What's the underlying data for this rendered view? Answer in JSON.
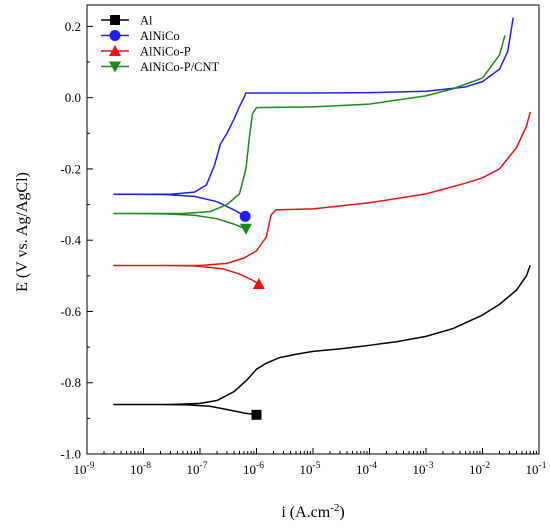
{
  "chart_data": {
    "type": "line",
    "title": "",
    "xlabel": "i (A.cm",
    "xlabel_superscript": "-2",
    "xlabel_close": ")",
    "ylabel": "E (V vs. Ag/AgCl)",
    "x_scale": "log",
    "xlim": [
      1e-09,
      0.1
    ],
    "ylim": [
      -1.0,
      0.26
    ],
    "x_ticks": [
      {
        "base": "10",
        "exp": "-9"
      },
      {
        "base": "10",
        "exp": "-8"
      },
      {
        "base": "10",
        "exp": "-7"
      },
      {
        "base": "10",
        "exp": "-6"
      },
      {
        "base": "10",
        "exp": "-5"
      },
      {
        "base": "10",
        "exp": "-4"
      },
      {
        "base": "10",
        "exp": "-3"
      },
      {
        "base": "10",
        "exp": "-2"
      },
      {
        "base": "10",
        "exp": "-1"
      }
    ],
    "y_ticks": [
      "-1.0",
      "-0.8",
      "-0.6",
      "-0.4",
      "-0.2",
      "0.0",
      "0.2"
    ],
    "grid": false,
    "legend_position": "top-left",
    "series": [
      {
        "name": "Al",
        "color": "#000000",
        "marker": "square",
        "cathodic": [
          [
            1e-06,
            -0.89
          ],
          [
            6e-07,
            -0.885
          ],
          [
            3e-07,
            -0.875
          ],
          [
            1.5e-07,
            -0.866
          ],
          [
            6e-08,
            -0.862
          ],
          [
            2e-08,
            -0.861
          ],
          [
            3e-09,
            -0.861
          ]
        ],
        "anodic": [
          [
            3e-09,
            -0.861
          ],
          [
            3e-08,
            -0.861
          ],
          [
            1e-07,
            -0.858
          ],
          [
            2e-07,
            -0.85
          ],
          [
            4e-07,
            -0.825
          ],
          [
            7e-07,
            -0.79
          ],
          [
            1e-06,
            -0.762
          ],
          [
            1.5e-06,
            -0.745
          ],
          [
            2.5e-06,
            -0.73
          ],
          [
            5e-06,
            -0.72
          ],
          [
            1e-05,
            -0.712
          ],
          [
            3e-05,
            -0.705
          ],
          [
            0.0001,
            -0.695
          ],
          [
            0.0003,
            -0.685
          ],
          [
            0.001,
            -0.67
          ],
          [
            0.003,
            -0.648
          ],
          [
            0.01,
            -0.61
          ],
          [
            0.02,
            -0.58
          ],
          [
            0.04,
            -0.54
          ],
          [
            0.06,
            -0.5
          ],
          [
            0.07,
            -0.47
          ]
        ]
      },
      {
        "name": "AlNiCo",
        "color": "#1f1fef",
        "marker": "circle",
        "cathodic": [
          [
            6.3e-07,
            -0.333
          ],
          [
            4e-07,
            -0.315
          ],
          [
            2e-07,
            -0.292
          ],
          [
            8e-08,
            -0.277
          ],
          [
            2.5e-08,
            -0.272
          ],
          [
            3e-09,
            -0.271
          ]
        ],
        "anodic": [
          [
            3e-09,
            -0.271
          ],
          [
            3e-08,
            -0.271
          ],
          [
            8e-08,
            -0.265
          ],
          [
            1.3e-07,
            -0.245
          ],
          [
            1.8e-07,
            -0.19
          ],
          [
            2.3e-07,
            -0.13
          ],
          [
            3e-07,
            -0.1
          ],
          [
            4e-07,
            -0.06
          ],
          [
            5e-07,
            -0.025
          ],
          [
            6e-07,
            0.0
          ],
          [
            6.5e-07,
            0.013
          ],
          [
            1e-06,
            0.013
          ],
          [
            1e-05,
            0.013
          ],
          [
            0.0001,
            0.014
          ],
          [
            0.001,
            0.018
          ],
          [
            0.005,
            0.03
          ],
          [
            0.01,
            0.045
          ],
          [
            0.02,
            0.08
          ],
          [
            0.028,
            0.13
          ],
          [
            0.033,
            0.2
          ],
          [
            0.035,
            0.225
          ]
        ]
      },
      {
        "name": "AlNiCo-P",
        "color": "#ee1111",
        "marker": "triangle-up",
        "cathodic": [
          [
            1.1e-06,
            -0.523
          ],
          [
            8e-07,
            -0.51
          ],
          [
            5e-07,
            -0.495
          ],
          [
            2.5e-07,
            -0.48
          ],
          [
            8e-08,
            -0.472
          ],
          [
            2e-08,
            -0.471
          ],
          [
            3e-09,
            -0.471
          ]
        ],
        "anodic": [
          [
            3e-09,
            -0.471
          ],
          [
            1e-07,
            -0.471
          ],
          [
            3e-07,
            -0.465
          ],
          [
            6e-07,
            -0.45
          ],
          [
            1e-06,
            -0.43
          ],
          [
            1.5e-06,
            -0.39
          ],
          [
            1.8e-06,
            -0.33
          ],
          [
            2.2e-06,
            -0.315
          ],
          [
            1e-05,
            -0.312
          ],
          [
            0.0001,
            -0.295
          ],
          [
            0.001,
            -0.27
          ],
          [
            0.005,
            -0.24
          ],
          [
            0.01,
            -0.225
          ],
          [
            0.02,
            -0.2
          ],
          [
            0.04,
            -0.14
          ],
          [
            0.06,
            -0.08
          ],
          [
            0.07,
            -0.04
          ]
        ]
      },
      {
        "name": "AlNiCo-P/CNT",
        "color": "#1a8a1a",
        "marker": "triangle-down",
        "cathodic": [
          [
            6.5e-07,
            -0.368
          ],
          [
            4e-07,
            -0.355
          ],
          [
            2e-07,
            -0.34
          ],
          [
            8e-08,
            -0.33
          ],
          [
            2.5e-08,
            -0.326
          ],
          [
            3e-09,
            -0.325
          ]
        ],
        "anodic": [
          [
            3e-09,
            -0.325
          ],
          [
            5e-08,
            -0.325
          ],
          [
            1.5e-07,
            -0.32
          ],
          [
            3e-07,
            -0.3
          ],
          [
            5e-07,
            -0.27
          ],
          [
            6.5e-07,
            -0.2
          ],
          [
            7.5e-07,
            -0.11
          ],
          [
            8.5e-07,
            -0.045
          ],
          [
            1e-06,
            -0.028
          ],
          [
            1e-05,
            -0.026
          ],
          [
            0.0001,
            -0.018
          ],
          [
            0.001,
            0.005
          ],
          [
            0.003,
            0.025
          ],
          [
            0.01,
            0.055
          ],
          [
            0.02,
            0.12
          ],
          [
            0.025,
            0.175
          ]
        ]
      }
    ]
  },
  "colors": {
    "axis": "#000000",
    "background": "#ffffff"
  }
}
